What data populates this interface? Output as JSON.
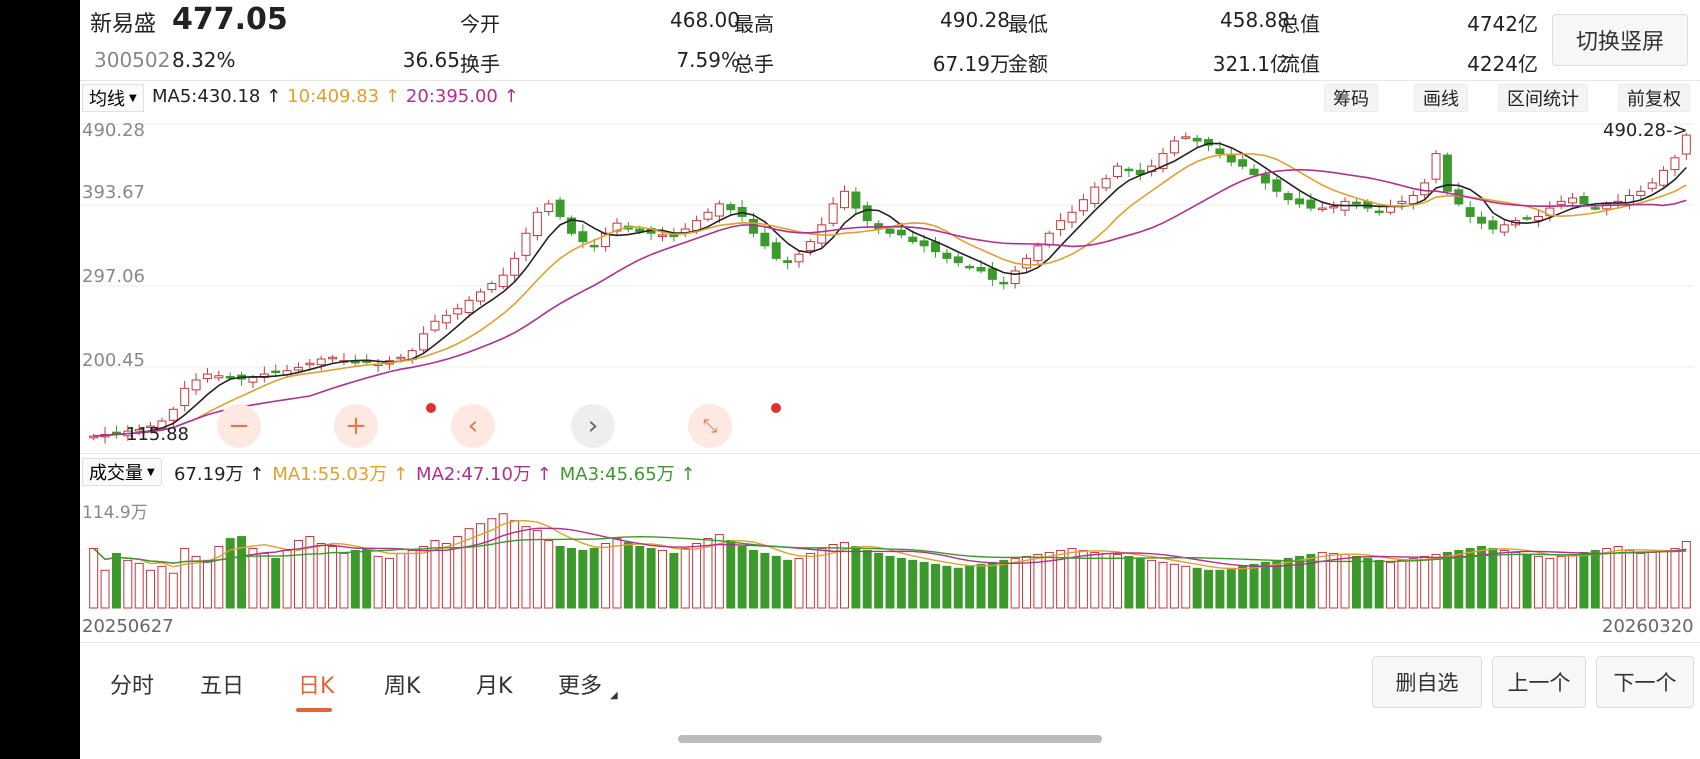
{
  "header": {
    "stock_name": "新易盛",
    "price": "477.05",
    "code": "300502",
    "change_pct": "8.32%",
    "change": "36.65",
    "stats": [
      {
        "label": "今开",
        "value": "468.00",
        "red": true
      },
      {
        "label": "最高",
        "value": "490.28",
        "red": true
      },
      {
        "label": "最低",
        "value": "458.88",
        "red": true
      },
      {
        "label": "总值",
        "value": "4742亿",
        "red": false
      },
      {
        "label": "换手",
        "value": "7.59%",
        "red": false
      },
      {
        "label": "总手",
        "value": "67.19万",
        "red": false
      },
      {
        "label": "金额",
        "value": "321.1亿",
        "red": false
      },
      {
        "label": "流值",
        "value": "4224亿",
        "red": false
      }
    ],
    "switch_label": "切换竖屏"
  },
  "toolbar": {
    "ma_selector": "均线",
    "ma5": "MA5:430.18 ↑",
    "ma10": "10:409.83 ↑",
    "ma20": "20:395.00 ↑",
    "tools": [
      "筹码",
      "画线",
      "区间统计",
      "前复权"
    ]
  },
  "volume_bar": {
    "selector": "成交量",
    "vol": "67.19万 ↑",
    "ma1": "MA1:55.03万 ↑",
    "ma2": "MA2:47.10万 ↑",
    "ma3": "MA3:45.65万 ↑"
  },
  "colors": {
    "up": "#c0393b",
    "down": "#3c9a2c",
    "ma5": "#222222",
    "ma10": "#e0a030",
    "ma20": "#b03090",
    "vma3": "#3c9a2c"
  },
  "nav": {
    "periods": [
      "分时",
      "五日",
      "日K",
      "周K",
      "月K",
      "更多"
    ],
    "active": 2,
    "actions": [
      "删自选",
      "上一个",
      "下一个"
    ]
  },
  "chart_data": {
    "type": "candlestick",
    "x_start": "20250627",
    "x_end": "20260320",
    "y_ticks": [
      "490.28",
      "393.67",
      "297.06",
      "200.45"
    ],
    "ylim": [
      103.84,
      490.28
    ],
    "max_label": "490.28->",
    "min_label": "115.88",
    "volume_max_label": "114.9万",
    "volume_ylim": [
      0,
      114.9
    ],
    "close_path": [
      118,
      120,
      122,
      124,
      126,
      130,
      136,
      150,
      175,
      185,
      192,
      190,
      188,
      186,
      188,
      192,
      194,
      196,
      200,
      205,
      210,
      212,
      208,
      206,
      206,
      204,
      208,
      212,
      220,
      240,
      255,
      262,
      270,
      280,
      290,
      300,
      310,
      330,
      360,
      385,
      395,
      380,
      360,
      350,
      345,
      360,
      372,
      365,
      362,
      360,
      358,
      356,
      365,
      375,
      385,
      395,
      388,
      380,
      360,
      345,
      330,
      325,
      335,
      350,
      370,
      395,
      410,
      390,
      375,
      365,
      360,
      358,
      350,
      345,
      338,
      330,
      325,
      320,
      315,
      305,
      300,
      315,
      330,
      345,
      360,
      375,
      385,
      400,
      415,
      425,
      440,
      435,
      430,
      440,
      455,
      470,
      475,
      470,
      465,
      455,
      445,
      440,
      430,
      420,
      410,
      400,
      395,
      390,
      390,
      392,
      398,
      395,
      390,
      385,
      392,
      398,
      405,
      420,
      455,
      410,
      395,
      380,
      372,
      365,
      370,
      375,
      378,
      380,
      390,
      398,
      402,
      395,
      390,
      395,
      398,
      405,
      410,
      420,
      435,
      450,
      477
    ],
    "volumes": [
      60,
      38,
      55,
      48,
      45,
      38,
      42,
      35,
      60,
      52,
      48,
      62,
      70,
      72,
      60,
      55,
      50,
      58,
      68,
      72,
      65,
      62,
      55,
      58,
      60,
      52,
      50,
      55,
      58,
      62,
      68,
      65,
      72,
      80,
      85,
      90,
      95,
      88,
      82,
      78,
      68,
      62,
      60,
      58,
      60,
      65,
      70,
      66,
      62,
      60,
      58,
      55,
      60,
      65,
      70,
      74,
      68,
      62,
      58,
      55,
      52,
      48,
      50,
      55,
      60,
      64,
      66,
      62,
      58,
      55,
      52,
      50,
      48,
      46,
      44,
      42,
      40,
      42,
      44,
      46,
      48,
      50,
      52,
      54,
      56,
      58,
      60,
      58,
      56,
      55,
      54,
      52,
      50,
      48,
      46,
      44,
      42,
      40,
      38,
      38,
      40,
      42,
      44,
      46,
      48,
      50,
      52,
      54,
      56,
      55,
      54,
      52,
      50,
      48,
      46,
      48,
      50,
      52,
      54,
      56,
      58,
      60,
      62,
      60,
      58,
      56,
      54,
      52,
      50,
      52,
      54,
      56,
      58,
      60,
      62,
      58,
      55,
      56,
      58,
      60,
      67
    ]
  }
}
